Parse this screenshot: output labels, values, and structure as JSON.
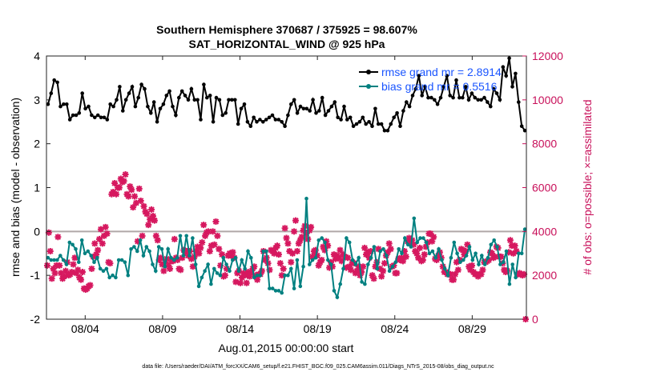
{
  "figure": {
    "title_line1": "Southern Hemisphere 370687 / 375925 = 98.607%",
    "title_line2": "SAT_HORIZONTAL_WIND @ 925 hPa",
    "xlabel": "Aug.01,2015 00:00:00 start",
    "ylabel_left": "rmse and bias (model - observation)",
    "ylabel_right": "# of obs: o=possible; ×=assimilated",
    "footer": "data file: /Users/raeder/DAI/ATM_forcXX/CAM6_setup/f.e21.FHIST_BGC.f09_025.CAM6assim.011/Diags_NTrS_2015-08/obs_diag_output.nc",
    "legend": {
      "rmse": "rmse grand mr = 2.8914",
      "bias": "bias grand mr = 0.5516"
    }
  },
  "chart_data": {
    "type": "line",
    "x_unit": "days since Aug.01,2015 00:00:00",
    "xlim": [
      0.5,
      31.5
    ],
    "x_ticks": [
      3,
      8,
      13,
      18,
      23,
      28
    ],
    "x_tick_labels": [
      "08/04",
      "08/09",
      "08/14",
      "08/19",
      "08/24",
      "08/29"
    ],
    "ylim_left": [
      -2,
      4
    ],
    "y_ticks_left": [
      -2,
      -1,
      0,
      1,
      2,
      3,
      4
    ],
    "ylim_right": [
      0,
      12000
    ],
    "y_ticks_right": [
      0,
      2000,
      4000,
      6000,
      8000,
      10000,
      12000
    ],
    "grid": false,
    "legend_position": "top-right",
    "colors": {
      "rmse": "#000000",
      "bias": "#008080",
      "obs": "#d6185f",
      "zero_line": "#b0a8a8",
      "right_axis": "#c8105a"
    },
    "rmse": [
      2.9,
      3.15,
      3.45,
      3.4,
      2.85,
      2.9,
      2.9,
      2.55,
      2.65,
      2.65,
      2.7,
      3.15,
      2.8,
      2.85,
      2.65,
      2.6,
      2.65,
      2.6,
      2.6,
      2.55,
      2.9,
      2.85,
      3.0,
      3.3,
      2.75,
      3.0,
      3.15,
      3.3,
      2.85,
      3.05,
      3.35,
      3.25,
      2.85,
      2.7,
      2.95,
      2.5,
      2.8,
      2.9,
      3.1,
      3.2,
      2.85,
      2.65,
      3.05,
      3.2,
      3.1,
      3.0,
      3.25,
      3.0,
      3.0,
      2.55,
      3.35,
      3.05,
      3.1,
      2.5,
      3.05,
      3.0,
      2.65,
      2.7,
      3.0,
      3.0,
      3.0,
      2.45,
      2.8,
      2.9,
      2.5,
      2.4,
      2.6,
      2.5,
      2.55,
      2.5,
      2.55,
      2.6,
      2.65,
      2.55,
      2.55,
      2.5,
      2.4,
      2.65,
      2.9,
      3.0,
      2.7,
      2.85,
      2.8,
      2.8,
      2.75,
      3.0,
      2.7,
      2.75,
      3.05,
      2.65,
      2.75,
      2.85,
      2.95,
      2.6,
      2.55,
      2.85,
      2.55,
      2.6,
      2.4,
      2.45,
      2.5,
      2.6,
      2.45,
      2.5,
      2.4,
      2.8,
      2.45,
      2.45,
      2.3,
      2.3,
      2.45,
      2.6,
      2.7,
      2.4,
      2.75,
      2.95,
      2.85,
      3.1,
      3.25,
      3.55,
      3.1,
      3.3,
      3.05,
      3.05,
      3.0,
      2.9,
      3.05,
      3.3,
      3.55,
      3.1,
      3.05,
      3.45,
      3.05,
      3.05,
      3.3,
      3.0,
      3.15,
      3.05,
      3.0,
      3.0,
      3.05,
      2.95,
      2.85,
      3.25,
      3.15,
      3.0,
      3.75,
      3.55,
      3.95,
      3.3,
      3.6,
      2.95,
      2.4,
      2.3
    ],
    "bias": [
      -0.6,
      -0.65,
      -0.65,
      -0.65,
      -0.55,
      -0.65,
      -0.75,
      -0.25,
      -0.3,
      -0.4,
      -0.7,
      -0.2,
      -0.5,
      -0.45,
      -0.55,
      -0.7,
      -0.6,
      -0.85,
      -0.9,
      -0.85,
      -1.05,
      -1.0,
      -1.05,
      -0.65,
      -0.65,
      -0.7,
      -1.0,
      -0.4,
      -0.35,
      -0.45,
      -0.2,
      -0.55,
      -0.35,
      -0.45,
      -0.75,
      -0.9,
      -0.35,
      -0.4,
      -0.8,
      -0.4,
      -0.6,
      -0.65,
      -0.6,
      -0.1,
      -0.55,
      -0.1,
      -0.55,
      -0.15,
      -0.75,
      -1.25,
      -1.05,
      -0.9,
      -0.75,
      -1.2,
      -0.85,
      -0.95,
      -1.0,
      -0.6,
      -0.75,
      -0.9,
      -0.65,
      -0.6,
      -0.9,
      -0.65,
      -0.85,
      -0.45,
      -0.6,
      -1.05,
      -1.0,
      -1.0,
      -0.45,
      -0.45,
      -1.3,
      -1.3,
      -1.35,
      -1.35,
      -1.4,
      -1.0,
      -1.0,
      -0.85,
      -1.3,
      -0.65,
      -1.25,
      -0.8,
      0.75,
      -0.75,
      -0.65,
      -0.6,
      -0.2,
      -0.15,
      -0.25,
      -0.65,
      -0.75,
      -1.35,
      -1.5,
      -1.2,
      -0.85,
      -0.15,
      -0.25,
      -0.65,
      -0.75,
      -0.6,
      -1.15,
      -1.2,
      -0.75,
      -0.6,
      -0.35,
      -0.85,
      -0.45,
      -0.4,
      -0.55,
      -0.9,
      -0.8,
      -0.7,
      -0.4,
      -0.5,
      -0.15,
      -0.3,
      -0.35,
      0.3,
      -0.25,
      -0.15,
      -0.15,
      -0.25,
      -0.5,
      -0.45,
      -0.6,
      -0.4,
      -0.65,
      -0.85,
      -1.0,
      -0.6,
      -0.25,
      -0.5,
      -0.7,
      -0.65,
      -0.55,
      -0.35,
      -0.65,
      -0.5,
      -0.75,
      -0.55,
      -0.75,
      -0.6,
      -0.3,
      -0.2,
      -0.35,
      -0.75,
      -0.7,
      -0.45,
      -1.2,
      -0.75,
      -1.05,
      -0.5,
      -0.5,
      0.05
    ],
    "obs_assimilated": [
      2450,
      3950,
      3100,
      1850,
      2300,
      2100,
      2450,
      3750,
      2450,
      2100,
      1850,
      1950,
      2200,
      2600,
      2000,
      2050,
      2150,
      2500,
      2800,
      2100,
      2250,
      1900,
      1800,
      2150,
      1400,
      1350,
      1400,
      1500,
      1550,
      2300,
      2850,
      3450,
      2950,
      3150,
      3650,
      4100,
      3450,
      3800,
      4200,
      3900,
      2600,
      2550,
      5700,
      5800,
      6200,
      5700,
      6000,
      6000,
      6400,
      6250,
      6300,
      6600,
      5700,
      5600,
      6050,
      5900,
      5100,
      5600,
      5300,
      3550,
      5950,
      5400,
      3800,
      5150,
      4900,
      4800,
      4300,
      4550,
      5000,
      4700,
      4500,
      3800,
      3600,
      2700,
      2800,
      2500,
      2200,
      2600,
      2750,
      2450,
      2300,
      2650,
      2650,
      3650,
      2800,
      2700,
      2300,
      2250,
      2800,
      3150,
      3050,
      3100,
      2900,
      3100,
      2750,
      2400,
      2850,
      3100,
      3300,
      3000,
      3250,
      3500,
      4300,
      3800,
      3950,
      4000,
      3100,
      3350,
      4000,
      3400,
      4450,
      3800,
      3200,
      2450,
      2950,
      1950,
      2000,
      2300,
      2900,
      3000,
      2900,
      3050,
      2800,
      1700,
      2100,
      2200,
      1650,
      1900,
      2100,
      2000,
      1650,
      2150,
      1950,
      2100,
      2300,
      2400,
      2000,
      1800,
      2050,
      2050,
      2200,
      3100,
      2700,
      2800,
      2550,
      2250,
      3150,
      3100,
      3000,
      3250,
      3350,
      2950,
      2550,
      2000,
      2300,
      4150,
      3700,
      3450,
      3100,
      2600,
      3000,
      4000,
      4500,
      3100,
      3450,
      3600,
      3750,
      4050,
      4250,
      3900,
      3650,
      4050,
      4200,
      2850,
      3100,
      3150,
      2900,
      2450,
      2600,
      2700,
      3300,
      3150,
      3550,
      3350,
      2350,
      2600,
      2400,
      2950,
      2750,
      2900,
      2800,
      3150,
      2650,
      2950,
      2850,
      2350,
      2800,
      2400,
      2250,
      2600,
      2550,
      2100,
      2200,
      2400,
      2000,
      2150,
      2400,
      3250,
      2950,
      3050,
      2800,
      3100,
      2000,
      1850,
      2400,
      2600,
      3200,
      2300,
      1950,
      2200,
      2550,
      2900,
      3050,
      3450,
      3200,
      2400,
      2450,
      2100,
      2100,
      2750,
      2700,
      2800,
      2650,
      3100,
      2850,
      3550,
      3700,
      3500,
      3600,
      3400,
      3100,
      3000,
      2800,
      3250,
      2650,
      2700,
      2950,
      3300,
      3500,
      3900,
      3900,
      3550,
      3750,
      2750,
      2700,
      2900,
      3050,
      2800,
      2400,
      2150,
      2150,
      2050,
      2050,
      2050,
      1800,
      1800,
      2050,
      2600,
      2250,
      2700,
      3200,
      3150,
      2950,
      3100,
      3400,
      2400,
      2250,
      2450,
      2150,
      2050,
      2050,
      1950,
      2050,
      2050,
      2250,
      2600,
      2600,
      2650,
      2700,
      3050,
      3000,
      2800,
      2850,
      3300,
      3250,
      2850,
      2850,
      2550,
      2250,
      2150,
      2200,
      3050,
      3600,
      3350,
      3000,
      3350,
      3100,
      2050,
      2100,
      2050,
      2000,
      2050,
      0
    ]
  }
}
